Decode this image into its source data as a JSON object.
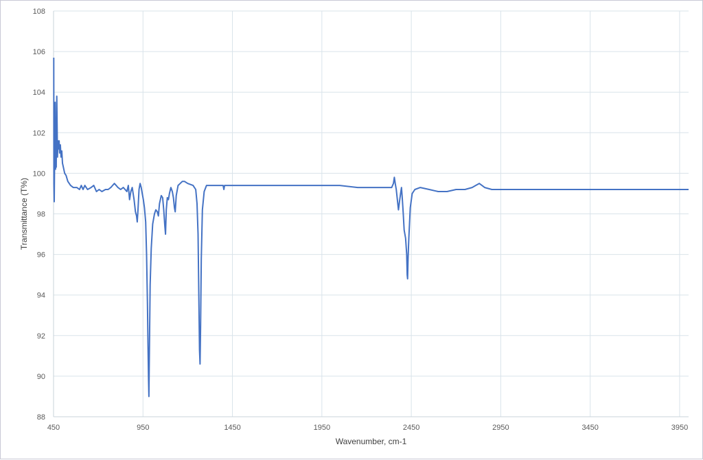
{
  "chart_data": {
    "type": "line",
    "title": "",
    "xlabel": "Wavenumber, cm-1",
    "ylabel": "Transmittance (T%)",
    "xlim": [
      450,
      4000
    ],
    "ylim": [
      88,
      108
    ],
    "x_ticks": [
      450,
      950,
      1450,
      1950,
      2450,
      2950,
      3450,
      3950
    ],
    "y_ticks": [
      88,
      90,
      92,
      94,
      96,
      98,
      100,
      102,
      104,
      106,
      108
    ],
    "grid": true,
    "legend": "none",
    "series": [
      {
        "color": "#4472c4",
        "points": [
          [
            451,
            105.7
          ],
          [
            452,
            99.5
          ],
          [
            454,
            98.6
          ],
          [
            456,
            101.0
          ],
          [
            459,
            103.5
          ],
          [
            461,
            100.2
          ],
          [
            463,
            102.7
          ],
          [
            465,
            100.3
          ],
          [
            468,
            103.8
          ],
          [
            470,
            102.4
          ],
          [
            472,
            100.8
          ],
          [
            475,
            101.6
          ],
          [
            478,
            101.2
          ],
          [
            481,
            101.6
          ],
          [
            484,
            101.0
          ],
          [
            488,
            101.4
          ],
          [
            492,
            100.8
          ],
          [
            496,
            101.1
          ],
          [
            500,
            100.5
          ],
          [
            505,
            100.3
          ],
          [
            512,
            100.0
          ],
          [
            520,
            99.9
          ],
          [
            530,
            99.6
          ],
          [
            545,
            99.4
          ],
          [
            560,
            99.3
          ],
          [
            580,
            99.3
          ],
          [
            595,
            99.2
          ],
          [
            605,
            99.4
          ],
          [
            615,
            99.2
          ],
          [
            625,
            99.4
          ],
          [
            640,
            99.2
          ],
          [
            660,
            99.3
          ],
          [
            675,
            99.4
          ],
          [
            690,
            99.1
          ],
          [
            705,
            99.2
          ],
          [
            720,
            99.1
          ],
          [
            740,
            99.2
          ],
          [
            755,
            99.2
          ],
          [
            770,
            99.3
          ],
          [
            780,
            99.4
          ],
          [
            790,
            99.5
          ],
          [
            800,
            99.4
          ],
          [
            810,
            99.3
          ],
          [
            825,
            99.2
          ],
          [
            840,
            99.3
          ],
          [
            850,
            99.2
          ],
          [
            860,
            99.1
          ],
          [
            868,
            99.4
          ],
          [
            875,
            98.7
          ],
          [
            882,
            99.1
          ],
          [
            890,
            99.3
          ],
          [
            900,
            98.7
          ],
          [
            908,
            98.1
          ],
          [
            914,
            97.9
          ],
          [
            918,
            97.6
          ],
          [
            922,
            98.2
          ],
          [
            928,
            99.2
          ],
          [
            934,
            99.5
          ],
          [
            940,
            99.3
          ],
          [
            946,
            99.0
          ],
          [
            952,
            98.7
          ],
          [
            958,
            98.3
          ],
          [
            965,
            97.6
          ],
          [
            970,
            96.0
          ],
          [
            975,
            93.5
          ],
          [
            978,
            91.5
          ],
          [
            981,
            89.8
          ],
          [
            983,
            89.0
          ],
          [
            986,
            91.5
          ],
          [
            990,
            94.5
          ],
          [
            996,
            96.3
          ],
          [
            1004,
            97.5
          ],
          [
            1014,
            98.0
          ],
          [
            1022,
            98.2
          ],
          [
            1030,
            98.1
          ],
          [
            1036,
            97.9
          ],
          [
            1042,
            98.5
          ],
          [
            1052,
            98.9
          ],
          [
            1060,
            98.8
          ],
          [
            1066,
            98.2
          ],
          [
            1072,
            97.4
          ],
          [
            1076,
            97.0
          ],
          [
            1080,
            98.2
          ],
          [
            1086,
            98.8
          ],
          [
            1092,
            98.7
          ],
          [
            1098,
            99.0
          ],
          [
            1106,
            99.3
          ],
          [
            1114,
            99.1
          ],
          [
            1120,
            98.8
          ],
          [
            1126,
            98.3
          ],
          [
            1130,
            98.1
          ],
          [
            1136,
            98.9
          ],
          [
            1146,
            99.4
          ],
          [
            1158,
            99.5
          ],
          [
            1170,
            99.6
          ],
          [
            1182,
            99.6
          ],
          [
            1200,
            99.5
          ],
          [
            1230,
            99.4
          ],
          [
            1245,
            99.2
          ],
          [
            1252,
            98.5
          ],
          [
            1258,
            97.0
          ],
          [
            1262,
            94.0
          ],
          [
            1266,
            91.3
          ],
          [
            1269,
            90.6
          ],
          [
            1272,
            92.5
          ],
          [
            1276,
            95.8
          ],
          [
            1282,
            98.2
          ],
          [
            1292,
            99.1
          ],
          [
            1305,
            99.4
          ],
          [
            1330,
            99.4
          ],
          [
            1360,
            99.4
          ],
          [
            1398,
            99.4
          ],
          [
            1402,
            99.2
          ],
          [
            1406,
            99.4
          ],
          [
            1450,
            99.4
          ],
          [
            1550,
            99.4
          ],
          [
            1650,
            99.4
          ],
          [
            1750,
            99.4
          ],
          [
            1850,
            99.4
          ],
          [
            1950,
            99.4
          ],
          [
            2050,
            99.4
          ],
          [
            2150,
            99.3
          ],
          [
            2250,
            99.3
          ],
          [
            2340,
            99.3
          ],
          [
            2350,
            99.5
          ],
          [
            2355,
            99.8
          ],
          [
            2360,
            99.5
          ],
          [
            2366,
            99.2
          ],
          [
            2372,
            98.7
          ],
          [
            2378,
            98.2
          ],
          [
            2384,
            98.6
          ],
          [
            2390,
            99.0
          ],
          [
            2395,
            99.3
          ],
          [
            2400,
            98.7
          ],
          [
            2405,
            98.0
          ],
          [
            2410,
            97.2
          ],
          [
            2418,
            96.8
          ],
          [
            2424,
            96.0
          ],
          [
            2427,
            95.0
          ],
          [
            2429,
            94.8
          ],
          [
            2432,
            95.8
          ],
          [
            2436,
            96.8
          ],
          [
            2444,
            98.3
          ],
          [
            2455,
            99.0
          ],
          [
            2470,
            99.2
          ],
          [
            2500,
            99.3
          ],
          [
            2550,
            99.2
          ],
          [
            2600,
            99.1
          ],
          [
            2650,
            99.1
          ],
          [
            2700,
            99.2
          ],
          [
            2750,
            99.2
          ],
          [
            2790,
            99.3
          ],
          [
            2810,
            99.4
          ],
          [
            2830,
            99.5
          ],
          [
            2845,
            99.4
          ],
          [
            2860,
            99.3
          ],
          [
            2900,
            99.2
          ],
          [
            2950,
            99.2
          ],
          [
            3000,
            99.2
          ],
          [
            3050,
            99.2
          ],
          [
            3100,
            99.2
          ],
          [
            3150,
            99.2
          ],
          [
            3200,
            99.2
          ],
          [
            3250,
            99.2
          ],
          [
            3300,
            99.2
          ],
          [
            3350,
            99.2
          ],
          [
            3400,
            99.2
          ],
          [
            3450,
            99.2
          ],
          [
            3500,
            99.2
          ],
          [
            3550,
            99.2
          ],
          [
            3600,
            99.2
          ],
          [
            3650,
            99.2
          ],
          [
            3700,
            99.2
          ],
          [
            3750,
            99.2
          ],
          [
            3800,
            99.2
          ],
          [
            3850,
            99.2
          ],
          [
            3900,
            99.2
          ],
          [
            3950,
            99.2
          ],
          [
            4000,
            99.2
          ]
        ]
      }
    ]
  }
}
